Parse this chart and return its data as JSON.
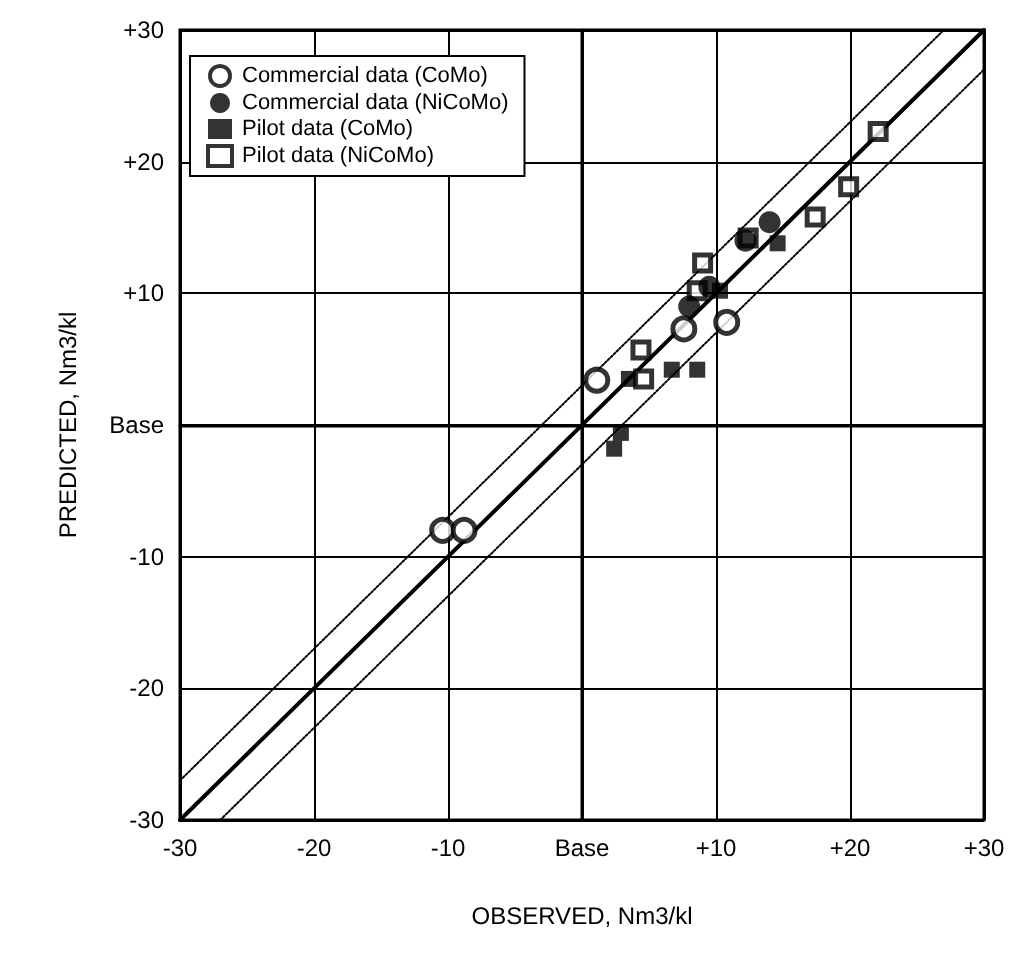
{
  "chart_data": {
    "type": "scatter",
    "xlabel": "OBSERVED, Nm3/kl",
    "ylabel": "PREDICTED, Nm3/kl",
    "xlim": [
      -30,
      30
    ],
    "ylim": [
      -30,
      30
    ],
    "xticks": [
      -30,
      -20,
      -10,
      {
        "value": 0,
        "label": "Base"
      },
      {
        "value": 10,
        "label": "+10"
      },
      {
        "value": 20,
        "label": "+20"
      },
      {
        "value": 30,
        "label": "+30"
      }
    ],
    "yticks": [
      -30,
      -20,
      -10,
      {
        "value": 0,
        "label": "Base"
      },
      {
        "value": 10,
        "label": "+10"
      },
      {
        "value": 20,
        "label": "+20"
      },
      {
        "value": 30,
        "label": "+30"
      }
    ],
    "grid": true,
    "legend": "top left",
    "series": [
      {
        "name": "Commercial data (CoMo)",
        "color": "#ffffff",
        "marker": "circle",
        "x": [
          -10.4,
          -8.8,
          1.1,
          7.6,
          10.8
        ],
        "values": [
          -8,
          -8,
          3.4,
          7.3,
          7.8
        ]
      },
      {
        "name": "Commercial data (NiCoMo)",
        "color": "#000000",
        "marker": "circle",
        "x": [
          8,
          9.5,
          12.2,
          14
        ],
        "values": [
          9,
          10.5,
          14,
          15.4
        ]
      },
      {
        "name": "Pilot data (CoMo)",
        "color": "#000000",
        "marker": "square",
        "x": [
          2.4,
          2.9,
          3.5,
          6.7,
          8.6,
          10.3,
          14.6
        ],
        "values": [
          -1.8,
          -0.6,
          3.5,
          4.2,
          4.2,
          10.2,
          13.8
        ]
      },
      {
        "name": "Pilot data (NiCoMo)",
        "color": "#ffffff",
        "marker": "square",
        "x": [
          4.4,
          4.6,
          8.6,
          9,
          12.4,
          17.4,
          19.9,
          22.1
        ],
        "values": [
          5.7,
          3.5,
          10.2,
          12.3,
          14.2,
          15.8,
          18.1,
          22.3
        ]
      },
      {
        "type": "line",
        "color": "#000000",
        "marker": "none",
        "line_style": "solid",
        "x": [
          -30,
          30
        ],
        "values": [
          -30,
          30
        ]
      },
      {
        "type": "line",
        "color": "#000000",
        "marker": "none",
        "line_style": "dotted",
        "x": [
          -30,
          27
        ],
        "values": [
          -27,
          30
        ]
      },
      {
        "type": "line",
        "color": "#000000",
        "marker": "none",
        "line_style": "dotted",
        "x": [
          -27,
          30
        ],
        "values": [
          -30,
          27
        ]
      }
    ]
  }
}
